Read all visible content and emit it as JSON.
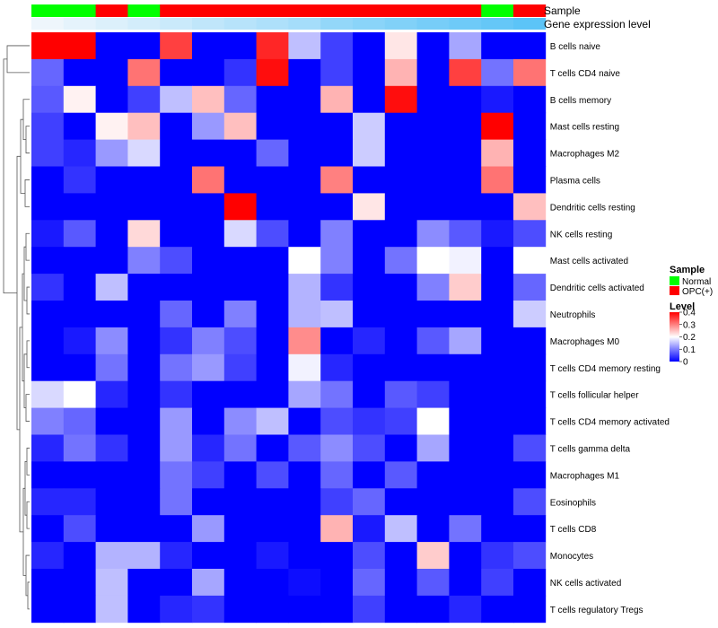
{
  "chart_data": {
    "type": "heatmap",
    "title": "",
    "row_labels": [
      "B cells naive",
      "T cells CD4 naive",
      "B cells memory",
      "Mast cells resting",
      "Macrophages M2",
      "Plasma cells",
      "Dendritic cells resting",
      "NK cells resting",
      "Mast cells activated",
      "Dendritic cells activated",
      "Neutrophils",
      "Macrophages M0",
      "T cells CD4 memory resting",
      "T cells follicular helper",
      "T cells CD4 memory activated",
      "T cells gamma delta",
      "Macrophages M1",
      "Eosinophils",
      "T cells CD8",
      "Monocytes",
      "NK cells activated",
      "T cells regulatory  Tregs"
    ],
    "col_annotations": {
      "sample": {
        "name": "Sample",
        "values": [
          "Normal",
          "Normal",
          "OPC(+)",
          "Normal",
          "OPC(+)",
          "OPC(+)",
          "OPC(+)",
          "OPC(+)",
          "OPC(+)",
          "OPC(+)",
          "OPC(+)",
          "OPC(+)",
          "OPC(+)",
          "OPC(+)",
          "Normal",
          "OPC(+)"
        ]
      },
      "expression": {
        "name": "Gene expression level",
        "values": [
          0.0,
          0.1,
          0.2,
          0.3,
          0.4,
          0.5,
          0.6,
          0.7,
          0.8,
          1.0,
          1.1,
          1.2,
          1.3,
          1.4,
          1.5,
          1.6
        ]
      }
    },
    "values": [
      [
        0.4,
        0.4,
        0.0,
        0.0,
        0.35,
        0.0,
        0.0,
        0.37,
        0.15,
        0.05,
        0.0,
        0.22,
        0.0,
        0.13,
        0.0,
        0.0
      ],
      [
        0.08,
        0.0,
        0.0,
        0.31,
        0.0,
        0.0,
        0.04,
        0.39,
        0.0,
        0.05,
        0.0,
        0.26,
        0.0,
        0.35,
        0.09,
        0.31
      ],
      [
        0.07,
        0.21,
        0.0,
        0.05,
        0.15,
        0.25,
        0.08,
        0.0,
        0.0,
        0.26,
        0.0,
        0.39,
        0.0,
        0.0,
        0.02,
        0.0
      ],
      [
        0.05,
        0.0,
        0.21,
        0.25,
        0.0,
        0.12,
        0.25,
        0.0,
        0.0,
        0.0,
        0.16,
        0.0,
        0.0,
        0.0,
        0.4,
        0.0
      ],
      [
        0.05,
        0.03,
        0.12,
        0.17,
        0.0,
        0.0,
        0.0,
        0.08,
        0.0,
        0.0,
        0.16,
        0.0,
        0.0,
        0.0,
        0.26,
        0.0
      ],
      [
        0.0,
        0.04,
        0.0,
        0.0,
        0.0,
        0.31,
        0.0,
        0.0,
        0.0,
        0.3,
        0.0,
        0.0,
        0.0,
        0.0,
        0.31,
        0.0
      ],
      [
        0.0,
        0.0,
        0.0,
        0.0,
        0.0,
        0.0,
        0.4,
        0.0,
        0.0,
        0.0,
        0.22,
        0.0,
        0.0,
        0.0,
        0.0,
        0.25
      ],
      [
        0.02,
        0.07,
        0.0,
        0.23,
        0.0,
        0.0,
        0.17,
        0.06,
        0.0,
        0.1,
        0.0,
        0.0,
        0.11,
        0.07,
        0.02,
        0.06
      ],
      [
        0.0,
        0.0,
        0.0,
        0.1,
        0.06,
        0.0,
        0.0,
        0.0,
        0.2,
        0.1,
        0.0,
        0.09,
        0.2,
        0.19,
        0.0,
        0.2
      ],
      [
        0.04,
        0.0,
        0.15,
        0.0,
        0.0,
        0.0,
        0.0,
        0.0,
        0.14,
        0.04,
        0.0,
        0.0,
        0.1,
        0.24,
        0.0,
        0.08
      ],
      [
        0.0,
        0.0,
        0.0,
        0.0,
        0.08,
        0.0,
        0.1,
        0.0,
        0.14,
        0.15,
        0.0,
        0.0,
        0.0,
        0.0,
        0.0,
        0.16
      ],
      [
        0.0,
        0.02,
        0.11,
        0.0,
        0.04,
        0.1,
        0.06,
        0.0,
        0.29,
        0.0,
        0.03,
        0.0,
        0.07,
        0.13,
        0.0,
        0.0
      ],
      [
        0.0,
        0.0,
        0.09,
        0.0,
        0.09,
        0.12,
        0.05,
        0.0,
        0.19,
        0.03,
        0.0,
        0.0,
        0.0,
        0.0,
        0.0,
        0.0
      ],
      [
        0.17,
        0.2,
        0.03,
        0.0,
        0.04,
        0.0,
        0.0,
        0.0,
        0.13,
        0.09,
        0.0,
        0.07,
        0.05,
        0.0,
        0.0,
        0.0
      ],
      [
        0.1,
        0.08,
        0.0,
        0.0,
        0.12,
        0.0,
        0.11,
        0.15,
        0.0,
        0.06,
        0.04,
        0.05,
        0.2,
        0.0,
        0.0,
        0.0
      ],
      [
        0.03,
        0.09,
        0.04,
        0.0,
        0.12,
        0.03,
        0.09,
        0.0,
        0.07,
        0.11,
        0.06,
        0.0,
        0.13,
        0.0,
        0.0,
        0.06
      ],
      [
        0.0,
        0.0,
        0.0,
        0.0,
        0.09,
        0.05,
        0.0,
        0.06,
        0.0,
        0.08,
        0.0,
        0.07,
        0.0,
        0.0,
        0.0,
        0.0
      ],
      [
        0.03,
        0.03,
        0.0,
        0.0,
        0.09,
        0.0,
        0.0,
        0.0,
        0.0,
        0.05,
        0.08,
        0.0,
        0.0,
        0.0,
        0.0,
        0.06
      ],
      [
        0.0,
        0.06,
        0.0,
        0.0,
        0.0,
        0.12,
        0.0,
        0.0,
        0.0,
        0.26,
        0.02,
        0.15,
        0.0,
        0.09,
        0.0,
        0.0
      ],
      [
        0.03,
        0.0,
        0.14,
        0.14,
        0.03,
        0.0,
        0.0,
        0.02,
        0.0,
        0.0,
        0.06,
        0.0,
        0.24,
        0.0,
        0.04,
        0.06
      ],
      [
        0.0,
        0.0,
        0.15,
        0.0,
        0.0,
        0.13,
        0.0,
        0.0,
        0.01,
        0.0,
        0.08,
        0.0,
        0.07,
        0.0,
        0.05,
        0.0
      ],
      [
        0.0,
        0.0,
        0.15,
        0.0,
        0.03,
        0.04,
        0.0,
        0.0,
        0.0,
        0.0,
        0.05,
        0.0,
        0.0,
        0.03,
        0.0,
        0.0
      ]
    ],
    "color_scale": {
      "low": "#0000ff",
      "mid": "#ffffff",
      "high": "#ff0000",
      "min": 0,
      "max": 0.4,
      "mid_value": 0.2
    },
    "annotation_colors": {
      "Normal": "#00ff00",
      "OPC(+)": "#ff0000",
      "expression_low": "#eef6fc",
      "expression_high": "#5cc4f7"
    },
    "legend": {
      "sample_title": "Sample",
      "sample_items": [
        "Normal",
        "OPC(+)"
      ],
      "level_title": "Level",
      "level_ticks": [
        "0.4",
        "0.3",
        "0.2",
        "0.1",
        "0"
      ],
      "placement": "right"
    },
    "row_dendrogram": true,
    "xlabel": "",
    "ylabel": ""
  }
}
